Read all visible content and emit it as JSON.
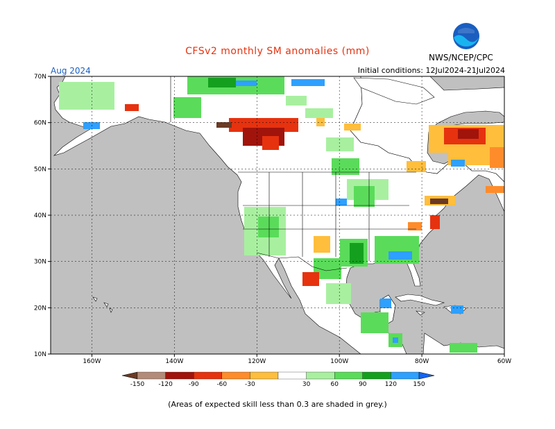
{
  "header": {
    "title": "CFSv2 monthly SM anomalies (mm)",
    "period": "Aug 2024",
    "initial_conditions": "Initial conditions: 12Jul2024-21Jul2024",
    "agency": "NWS/NCEP/CPC",
    "logo_text": "NOAA"
  },
  "map": {
    "projection": "lat-lon",
    "lon_range": [
      -170,
      -60
    ],
    "lat_range": [
      10,
      70
    ],
    "lat_labels": [
      "70N",
      "60N",
      "50N",
      "40N",
      "30N",
      "20N",
      "10N"
    ],
    "lon_labels": [
      "160W",
      "140W",
      "120W",
      "100W",
      "80W",
      "60W"
    ],
    "ocean_color": "#c0c0c0",
    "land_color": "#ffffff"
  },
  "colorbar": {
    "labels": [
      "-150",
      "-120",
      "-90",
      "-60",
      "-30",
      "30",
      "60",
      "90",
      "120",
      "150"
    ],
    "colors": [
      "#6b3a25",
      "#b38b78",
      "#a0140c",
      "#e6320f",
      "#ff8c2a",
      "#ffbe3c",
      "#ffffff",
      "#a8f0a0",
      "#5adc5a",
      "#14a01e",
      "#2ea0ff",
      "#1464f0"
    ]
  },
  "footer": {
    "note": "(Areas of expected skill less than 0.3 are shaded in grey.)"
  }
}
